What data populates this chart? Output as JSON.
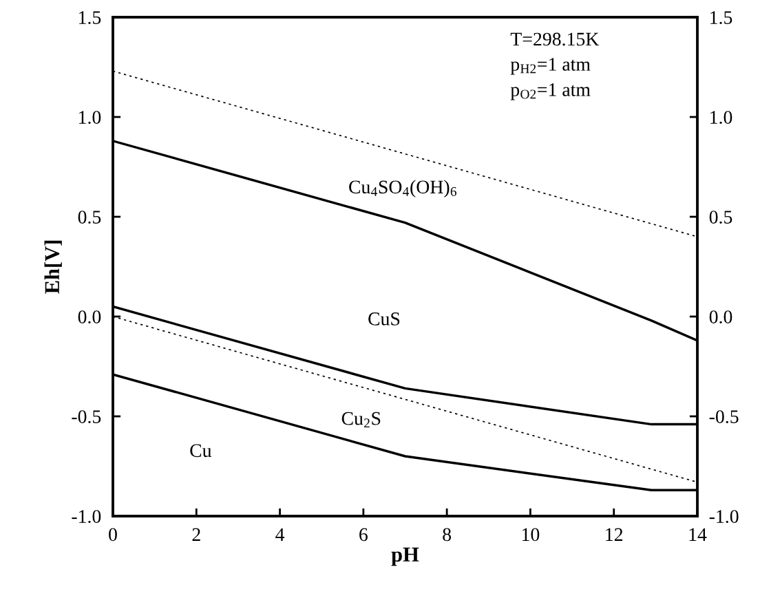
{
  "chart_data": {
    "type": "line",
    "xlabel": "pH",
    "ylabel": "Eh[V]",
    "xlim": [
      0,
      14
    ],
    "xticks": [
      0,
      2,
      4,
      6,
      8,
      10,
      12,
      14
    ],
    "ylim": [
      -1.0,
      1.5
    ],
    "yticks": [
      {
        "value": -1.0,
        "label": "-1.0"
      },
      {
        "value": -0.5,
        "label": "-0.5"
      },
      {
        "value": 0.0,
        "label": "0.0"
      },
      {
        "value": 0.5,
        "label": "0.5"
      },
      {
        "value": 1.0,
        "label": "1.0"
      },
      {
        "value": 1.5,
        "label": "1.5"
      }
    ],
    "y2lim": [
      -1.0,
      1.5
    ],
    "y2ticks": [
      {
        "value": -1.0,
        "label": "-1.0"
      },
      {
        "value": -0.5,
        "label": "-0.5"
      },
      {
        "value": 0.0,
        "label": "0.0"
      },
      {
        "value": 0.5,
        "label": "0.5"
      },
      {
        "value": 1.0,
        "label": "1.0"
      },
      {
        "value": 1.5,
        "label": "1.5"
      }
    ],
    "grid": false,
    "legend": false,
    "marker": "none",
    "series": [
      {
        "color": "#000000",
        "line_style": "dotted",
        "x": [
          0,
          14
        ],
        "values": [
          1.23,
          0.4
        ]
      },
      {
        "color": "#000000",
        "line_style": "solid",
        "x": [
          0,
          7,
          12.9,
          14
        ],
        "values": [
          0.88,
          0.47,
          -0.02,
          -0.12
        ]
      },
      {
        "color": "#000000",
        "line_style": "solid",
        "x": [
          0,
          7,
          12.9,
          14
        ],
        "values": [
          0.05,
          -0.36,
          -0.54,
          -0.54
        ]
      },
      {
        "color": "#000000",
        "line_style": "dotted",
        "x": [
          0,
          14
        ],
        "values": [
          0.0,
          -0.83
        ]
      },
      {
        "color": "#000000",
        "line_style": "solid",
        "x": [
          0,
          7,
          12.9,
          14
        ],
        "values": [
          -0.29,
          -0.7,
          -0.87,
          -0.87
        ]
      }
    ],
    "annotations": [
      "T=298.15K\np$_{H2}$=1 atm\np$_{O2}$=1 atm",
      "Cu$_{4}$SO$_{4}$(OH)$_{6}$",
      "CuS",
      "Cu$_{2}$S",
      "Cu"
    ]
  }
}
